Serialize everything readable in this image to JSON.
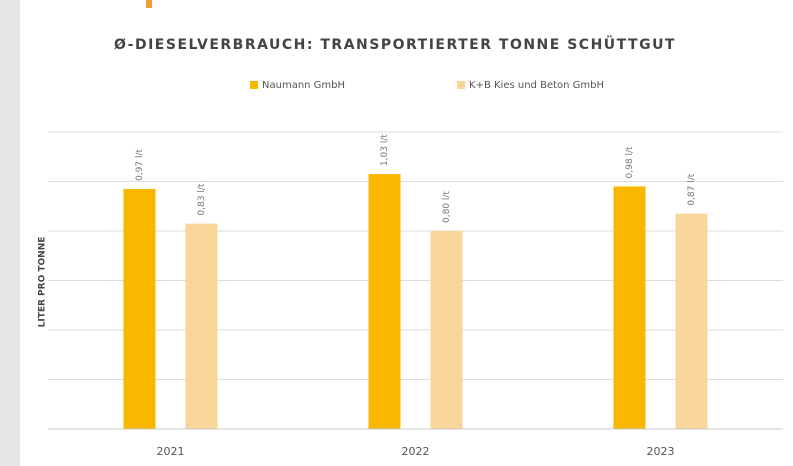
{
  "chart_data": {
    "type": "bar",
    "title": "Ø-DIESELVERBRAUCH: TRANSPORTIERTER TONNE SCHÜTTGUT",
    "y_label": "LITER PRO TONNE",
    "categories": [
      "2021",
      "2022",
      "2023"
    ],
    "series": [
      {
        "name": "Naumann GmbH",
        "color": "#f9b700",
        "values": [
          0.97,
          1.03,
          0.98
        ],
        "value_labels": [
          "0,97 l/t",
          "1,03 l/t",
          "0,98 l/t"
        ]
      },
      {
        "name": "K+B Kies und Beton GmbH",
        "color": "#fad59a",
        "values": [
          0.83,
          0.8,
          0.87
        ],
        "value_labels": [
          "0,83 l/t",
          "0,80 l/t",
          "0,87 l/t"
        ]
      }
    ],
    "ylim": [
      0,
      1.2
    ],
    "yticks": [
      0,
      0.2,
      0.4,
      0.6,
      0.8,
      1.0,
      1.2
    ],
    "grid": true,
    "legend": "top"
  }
}
